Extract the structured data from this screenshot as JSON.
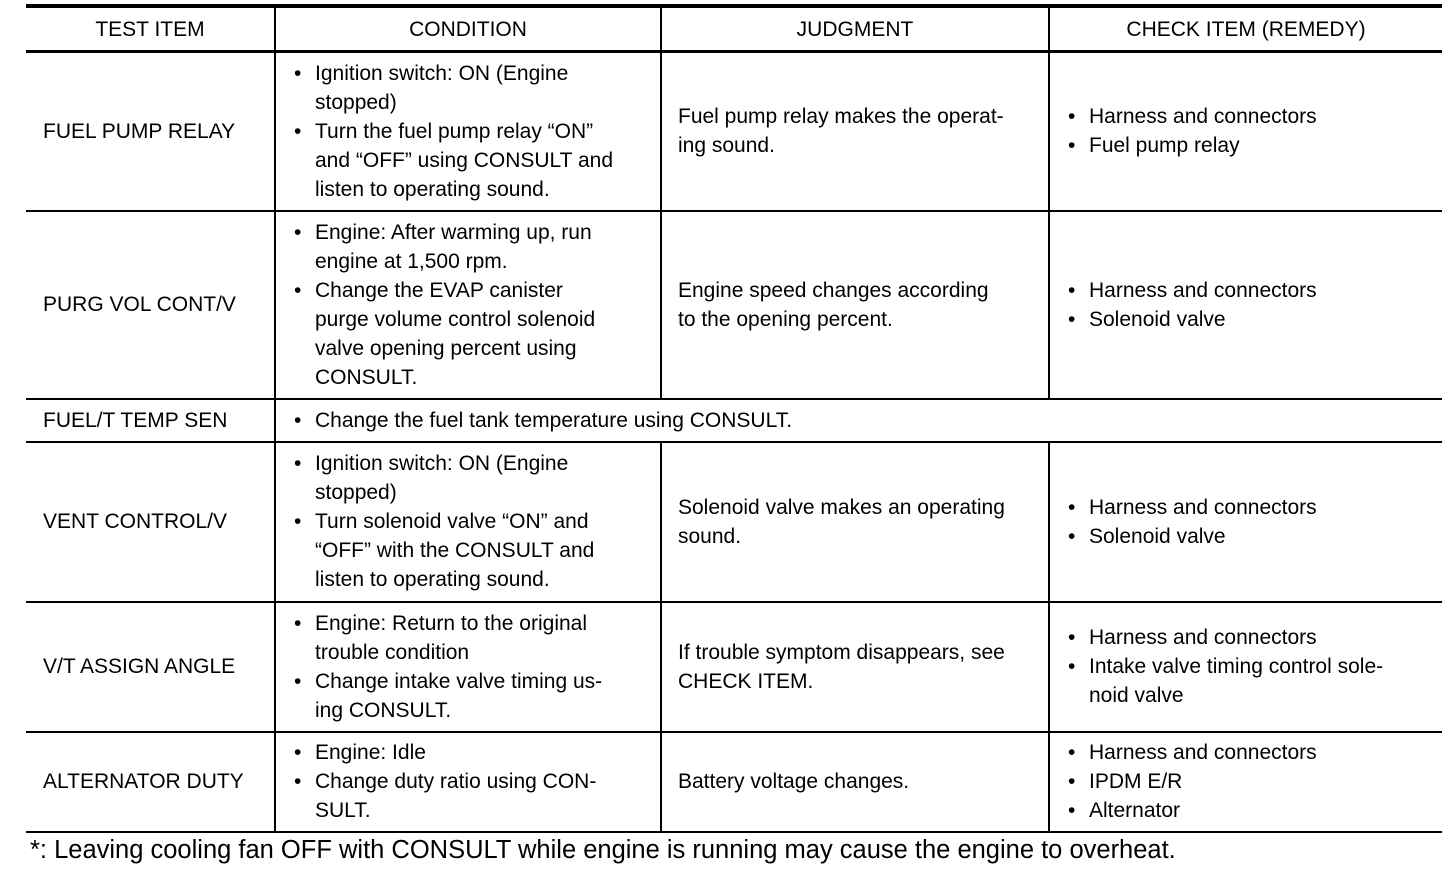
{
  "headers": [
    "TEST ITEM",
    "CONDITION",
    "JUDGMENT",
    "CHECK ITEM (REMEDY)"
  ],
  "rows": [
    {
      "item": "FUEL PUMP RELAY",
      "condition": [
        "Ignition switch: ON (Engine\nstopped)",
        "Turn the fuel pump relay “ON”\nand “OFF” using CONSULT and\nlisten to operating sound."
      ],
      "judgment": "Fuel pump relay makes the operat-\ning sound.",
      "check": [
        "Harness and connectors",
        "Fuel pump relay"
      ]
    },
    {
      "item": "PURG VOL CONT/V",
      "condition": [
        "Engine: After warming up, run\nengine at 1,500 rpm.",
        "Change the EVAP canister\npurge volume control solenoid\nvalve opening percent using\nCONSULT."
      ],
      "judgment": "Engine speed changes according\nto the opening percent.",
      "check": [
        "Harness and connectors",
        "Solenoid valve"
      ]
    },
    {
      "item": "FUEL/T TEMP SEN",
      "condition": [
        "Change the fuel tank temperature using CONSULT."
      ]
    },
    {
      "item": "VENT CONTROL/V",
      "condition": [
        "Ignition switch: ON (Engine\nstopped)",
        "Turn solenoid valve “ON” and\n“OFF” with the CONSULT and\nlisten to operating sound."
      ],
      "judgment": "Solenoid valve makes an operating\nsound.",
      "check": [
        "Harness and connectors",
        "Solenoid valve"
      ]
    },
    {
      "item": "V/T ASSIGN ANGLE",
      "condition": [
        "Engine: Return to the original\ntrouble condition",
        "Change intake valve timing us-\ning CONSULT."
      ],
      "judgment": "If trouble symptom disappears, see\nCHECK ITEM.",
      "check": [
        "Harness and connectors",
        "Intake valve timing control sole-\nnoid valve"
      ]
    },
    {
      "item": "ALTERNATOR DUTY",
      "condition": [
        "Engine: Idle",
        "Change duty ratio using CON-\nSULT."
      ],
      "judgment": "Battery voltage changes.",
      "check": [
        "Harness and connectors",
        "IPDM E/R",
        "Alternator"
      ]
    }
  ],
  "footnote": "*: Leaving cooling fan OFF with CONSULT while engine is running may cause the engine to overheat."
}
